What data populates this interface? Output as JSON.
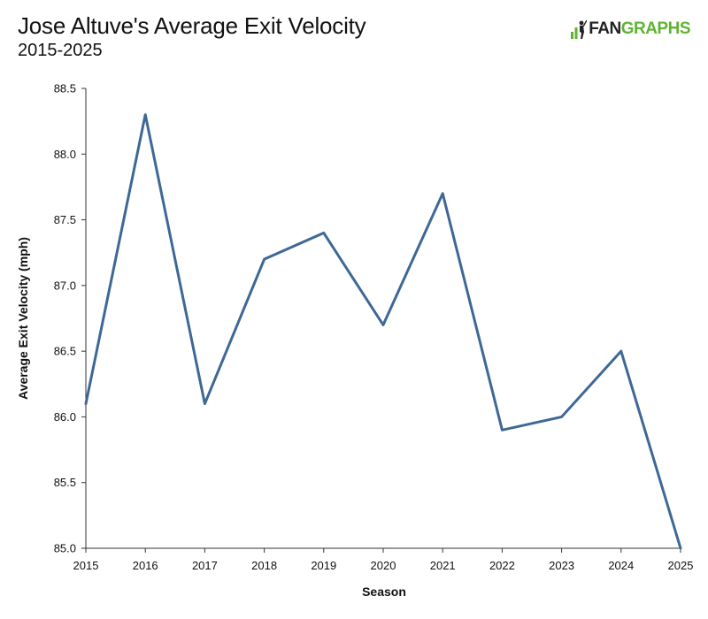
{
  "header": {
    "title": "Jose Altuve's Average Exit Velocity",
    "subtitle": "2015-2025",
    "logo_fan": "FAN",
    "logo_graphs": "GRAPHS",
    "logo_icon": "fangraphs-batter-icon"
  },
  "chart_data": {
    "type": "line",
    "title": "Jose Altuve's Average Exit Velocity",
    "subtitle": "2015-2025",
    "xlabel": "Season",
    "ylabel": "Average Exit Velocity (mph)",
    "x": [
      2015,
      2016,
      2017,
      2018,
      2019,
      2020,
      2021,
      2022,
      2023,
      2024,
      2025
    ],
    "series": [
      {
        "values": [
          86.1,
          88.3,
          86.1,
          87.2,
          87.4,
          86.7,
          87.7,
          85.9,
          86.0,
          86.5,
          85.0
        ]
      }
    ],
    "xlim": [
      2015,
      2025
    ],
    "ylim": [
      85.0,
      88.5
    ],
    "x_ticks": [
      "2015",
      "2016",
      "2017",
      "2018",
      "2019",
      "2020",
      "2021",
      "2022",
      "2023",
      "2024",
      "2025"
    ],
    "y_ticks": [
      "85.0",
      "85.5",
      "86.0",
      "86.5",
      "87.0",
      "87.5",
      "88.0",
      "88.5"
    ],
    "grid": false,
    "colors": {
      "line": "#3e6895",
      "axis": "#333333",
      "brand_green": "#5fb432"
    }
  }
}
